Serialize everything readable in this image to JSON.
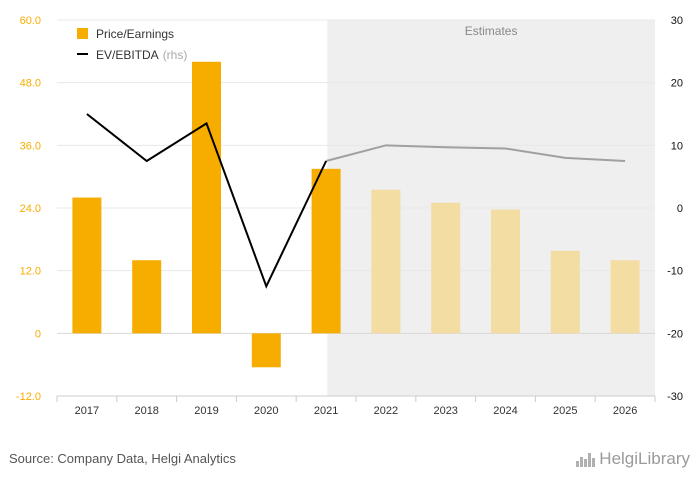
{
  "chart_data": {
    "type": "bar",
    "categories": [
      "2017",
      "2018",
      "2019",
      "2020",
      "2021",
      "2022",
      "2023",
      "2024",
      "2025",
      "2026"
    ],
    "estimates_label": "Estimates",
    "estimates_start": "2022",
    "series": [
      {
        "name": "Price/Earnings",
        "type": "bar",
        "axis": "left",
        "values": [
          26.0,
          14.0,
          52.0,
          -6.5,
          31.5,
          27.5,
          25.0,
          23.7,
          15.8,
          14.0
        ],
        "color": "#F7AD00",
        "estimate_color": "#F3DDA3"
      },
      {
        "name": "EV/EBITDA",
        "name_suffix": "(rhs)",
        "type": "line",
        "axis": "right",
        "values": [
          15.0,
          7.5,
          13.5,
          -12.5,
          7.5,
          10.0,
          9.7,
          9.5,
          8.0,
          7.5
        ],
        "color": "#000000",
        "estimate_color": "#A0A0A0"
      }
    ],
    "left_axis": {
      "min": -12,
      "max": 60,
      "ticks": [
        "60.0",
        "48.0",
        "36.0",
        "24.0",
        "12.0",
        "0",
        "-12.0"
      ]
    },
    "right_axis": {
      "min": -30,
      "max": 30,
      "ticks": [
        "30",
        "20",
        "10",
        "0",
        "-10",
        "-20",
        "-30"
      ]
    },
    "grid": true,
    "legend_position": "top-left"
  },
  "footer": {
    "source": "Source: Company Data, Helgi Analytics",
    "brand": "HelgiLibrary"
  },
  "colors": {
    "tick_left": "#F7AD00",
    "estimates_bg": "#EFEFEF"
  }
}
